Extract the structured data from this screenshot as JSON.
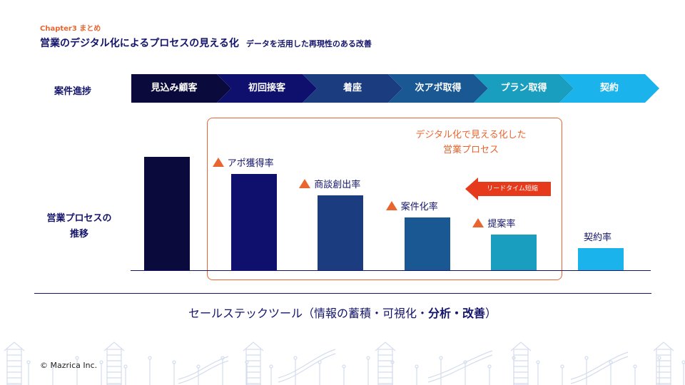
{
  "header": {
    "chapter": "Chapter3  まとめ",
    "title": "営業のデジタル化によるプロセスの見える化",
    "subtitle": "データを活用した再現性のある改善"
  },
  "rows": {
    "stages_label": "案件進捗",
    "transition_label_line1": "営業プロセスの",
    "transition_label_line2": "推移"
  },
  "stages": [
    {
      "label": "見込み顧客",
      "color": "#0a0a3c"
    },
    {
      "label": "初回接客",
      "color": "#0f0f6e"
    },
    {
      "label": "着座",
      "color": "#1c3c80"
    },
    {
      "label": "次アポ取得",
      "color": "#1a5894"
    },
    {
      "label": "プラン取得",
      "color": "#1a9ec0"
    },
    {
      "label": "契約",
      "color": "#1bb3eb"
    }
  ],
  "bars": [
    {
      "label": "",
      "value": 1.0,
      "color": "#0a0a3c",
      "marker": false
    },
    {
      "label": "アポ獲得率",
      "value": 0.85,
      "color": "#0f0f6e",
      "marker": true
    },
    {
      "label": "商談創出率",
      "value": 0.66,
      "color": "#1c3c80",
      "marker": true
    },
    {
      "label": "案件化率",
      "value": 0.47,
      "color": "#1a5894",
      "marker": true
    },
    {
      "label": "提案率",
      "value": 0.32,
      "color": "#1a9ec0",
      "marker": true
    },
    {
      "label": "契約率",
      "value": 0.2,
      "color": "#1bb3eb",
      "marker": false
    }
  ],
  "highlight": {
    "caption_line1": "デジタル化で見える化した",
    "caption_line2": "営業プロセス",
    "lead_time": "リードタイム短縮",
    "accent": "#e8652f"
  },
  "footer": {
    "tool_prefix": "セールステックツール（情報の蓄積・可視化・",
    "tool_bold": "分析・改善",
    "tool_suffix": "）",
    "copyright": "© Mazrica Inc."
  }
}
